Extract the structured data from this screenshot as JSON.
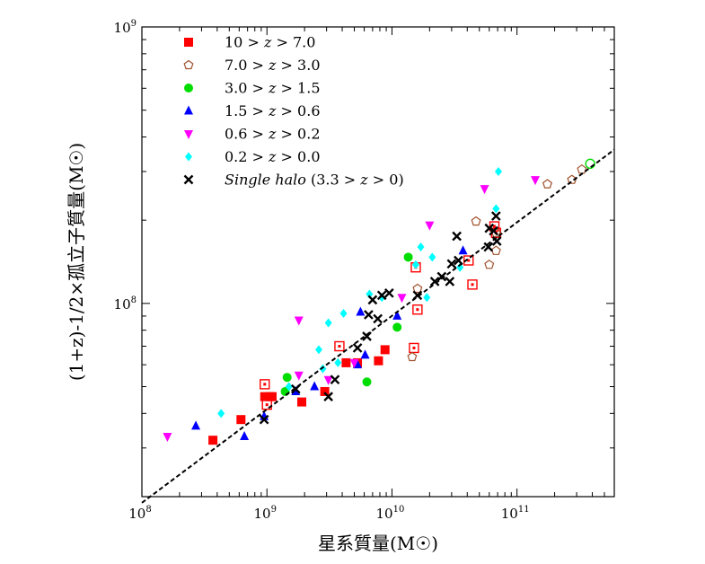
{
  "chart_data": {
    "type": "scatter",
    "title": "",
    "xlabel": "星系質量(M☉)",
    "ylabel": "(1+z)-1/2×孤立子質量(M☉)",
    "xscale": "log",
    "yscale": "log",
    "xlim": [
      100000000.0,
      600000000000.0
    ],
    "ylim": [
      20000000.0,
      1000000000.0
    ],
    "x_ticks": [
      {
        "base": "10",
        "exp": "8",
        "value": 100000000.0
      },
      {
        "base": "10",
        "exp": "9",
        "value": 1000000000.0
      },
      {
        "base": "10",
        "exp": "10",
        "value": 10000000000.0
      },
      {
        "base": "10",
        "exp": "11",
        "value": 100000000000.0
      }
    ],
    "y_ticks": [
      {
        "base": "10",
        "exp": "8",
        "value": 100000000.0
      },
      {
        "base": "10",
        "exp": "9",
        "value": 1000000000.0
      }
    ],
    "legend_position": "top-left",
    "fit_line": {
      "style": "dashed",
      "points": [
        [
          100000000.0,
          19000000.0
        ],
        [
          600000000000.0,
          360000000.0
        ]
      ]
    },
    "series": [
      {
        "name": "10 > z > 7.0",
        "marker": "square",
        "color": "#ff0000",
        "filled": [
          [
            370000000.0,
            32000000.0
          ],
          [
            620000000.0,
            38000000.0
          ],
          [
            960000000.0,
            46000000.0
          ],
          [
            1050000000.0,
            46000000.0
          ],
          [
            1100000000.0,
            46000000.0
          ],
          [
            1900000000.0,
            44000000.0
          ],
          [
            2900000000.0,
            48000000.0
          ],
          [
            4300000000.0,
            61000000.0
          ],
          [
            5300000000.0,
            61000000.0
          ],
          [
            7800000000.0,
            62000000.0
          ],
          [
            8800000000.0,
            68000000.0
          ]
        ],
        "open": [
          [
            960000000.0,
            51000000.0
          ],
          [
            1000000000.0,
            43000000.0
          ],
          [
            3800000000.0,
            70000000.0
          ],
          [
            15000000000.0,
            69000000.0
          ],
          [
            16000000000.0,
            95000000.0
          ],
          [
            15500000000.0,
            135000000.0
          ],
          [
            41000000000.0,
            143000000.0
          ],
          [
            44000000000.0,
            117000000.0
          ],
          [
            68000000000.0,
            180000000.0
          ],
          [
            66000000000.0,
            190000000.0
          ]
        ]
      },
      {
        "name": "7.0 > z > 3.0",
        "marker": "pentagon",
        "color": "#a0522d",
        "open": [
          [
            14500000000.0,
            64000000.0
          ],
          [
            16000000000.0,
            113000000.0
          ],
          [
            47000000000.0,
            198000000.0
          ],
          [
            60000000000.0,
            138000000.0
          ],
          [
            68000000000.0,
            155000000.0
          ],
          [
            68000000000.0,
            180000000.0
          ],
          [
            175000000000.0,
            270000000.0
          ],
          [
            275000000000.0,
            280000000.0
          ],
          [
            330000000000.0,
            305000000.0
          ]
        ]
      },
      {
        "name": "3.0 > z > 1.5",
        "marker": "circle",
        "color": "#00dd00",
        "filled": [
          [
            1450000000.0,
            54000000.0
          ],
          [
            1400000000.0,
            48000000.0
          ],
          [
            6300000000.0,
            52000000.0
          ],
          [
            11000000000.0,
            82000000.0
          ],
          [
            13500000000.0,
            147000000.0
          ]
        ],
        "open": [
          [
            385000000000.0,
            320000000.0
          ]
        ]
      },
      {
        "name": "1.5 > z > 0.6",
        "marker": "triangle-up",
        "color": "#0000ff",
        "filled": [
          [
            270000000.0,
            36000000.0
          ],
          [
            660000000.0,
            33000000.0
          ],
          [
            950000000.0,
            39000000.0
          ],
          [
            1700000000.0,
            48000000.0
          ],
          [
            2400000000.0,
            50000000.0
          ],
          [
            5300000000.0,
            60000000.0
          ],
          [
            6100000000.0,
            65000000.0
          ],
          [
            5600000000.0,
            93000000.0
          ],
          [
            11000000000.0,
            90000000.0
          ],
          [
            37000000000.0,
            155000000.0
          ]
        ]
      },
      {
        "name": "0.6 > z > 0.2",
        "marker": "triangle-down",
        "color": "#ff00ff",
        "filled": [
          [
            160000000.0,
            33000000.0
          ],
          [
            1800000000.0,
            55000000.0
          ],
          [
            1800000000.0,
            87000000.0
          ],
          [
            3100000000.0,
            53000000.0
          ],
          [
            5000000000.0,
            61000000.0
          ],
          [
            12000000000.0,
            105000000.0
          ],
          [
            20000000000.0,
            192000000.0
          ],
          [
            55000000000.0,
            260000000.0
          ],
          [
            140000000000.0,
            280000000.0
          ]
        ]
      },
      {
        "name": "0.2 > z > 0.0",
        "marker": "diamond",
        "color": "#00ffff",
        "filled": [
          [
            430000000.0,
            40000000.0
          ],
          [
            1500000000.0,
            50000000.0
          ],
          [
            2600000000.0,
            68000000.0
          ],
          [
            2800000000.0,
            58000000.0
          ],
          [
            3100000000.0,
            85000000.0
          ],
          [
            3700000000.0,
            61000000.0
          ],
          [
            4100000000.0,
            92000000.0
          ],
          [
            6600000000.0,
            108000000.0
          ],
          [
            8300000000.0,
            105000000.0
          ],
          [
            15500000000.0,
            138000000.0
          ],
          [
            17000000000.0,
            160000000.0
          ],
          [
            19000000000.0,
            105000000.0
          ],
          [
            21000000000.0,
            147000000.0
          ],
          [
            35000000000.0,
            135000000.0
          ],
          [
            68000000000.0,
            220000000.0
          ],
          [
            71000000000.0,
            300000000.0
          ]
        ]
      },
      {
        "name": "Single halo (3.3 > z > 0)",
        "marker": "x",
        "color": "#000000",
        "filled": [
          [
            950000000.0,
            38000000.0
          ],
          [
            1700000000.0,
            49000000.0
          ],
          [
            3100000000.0,
            46000000.0
          ],
          [
            3500000000.0,
            53000000.0
          ],
          [
            5300000000.0,
            69000000.0
          ],
          [
            6300000000.0,
            76000000.0
          ],
          [
            6500000000.0,
            91000000.0
          ],
          [
            7000000000.0,
            103000000.0
          ],
          [
            7700000000.0,
            88000000.0
          ],
          [
            8300000000.0,
            107000000.0
          ],
          [
            9500000000.0,
            109000000.0
          ],
          [
            16000000000.0,
            107000000.0
          ],
          [
            22000000000.0,
            120000000.0
          ],
          [
            25000000000.0,
            125000000.0
          ],
          [
            29000000000.0,
            120000000.0
          ],
          [
            30000000000.0,
            139000000.0
          ],
          [
            33000000000.0,
            175000000.0
          ],
          [
            34000000000.0,
            143000000.0
          ],
          [
            59000000000.0,
            160000000.0
          ],
          [
            60000000000.0,
            187000000.0
          ],
          [
            65000000000.0,
            183000000.0
          ],
          [
            69000000000.0,
            168000000.0
          ],
          [
            68000000000.0,
            207000000.0
          ]
        ]
      }
    ],
    "legend": [
      {
        "label_pre": "10 > ",
        "var": "z",
        "label_post": " > 7.0",
        "italic_prefix": ""
      },
      {
        "label_pre": "7.0 > ",
        "var": "z",
        "label_post": " > 3.0",
        "italic_prefix": ""
      },
      {
        "label_pre": "3.0 > ",
        "var": "z",
        "label_post": " > 1.5",
        "italic_prefix": ""
      },
      {
        "label_pre": "1.5 > ",
        "var": "z",
        "label_post": " > 0.6",
        "italic_prefix": ""
      },
      {
        "label_pre": "0.6 > ",
        "var": "z",
        "label_post": " > 0.2",
        "italic_prefix": ""
      },
      {
        "label_pre": "0.2 > ",
        "var": "z",
        "label_post": " > 0.0",
        "italic_prefix": ""
      },
      {
        "label_pre": " (3.3 > ",
        "var": "z",
        "label_post": " > 0)",
        "italic_prefix": "Single halo"
      }
    ]
  }
}
